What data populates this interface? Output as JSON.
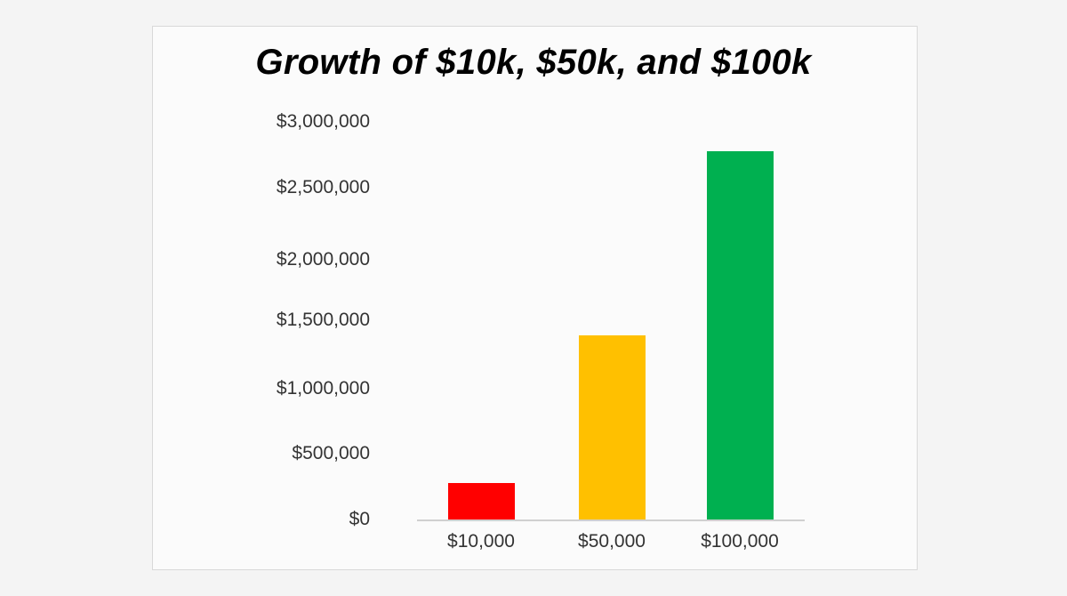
{
  "chart_data": {
    "type": "bar",
    "title": "Growth of $10k, $50k, and $100k",
    "xlabel": "",
    "ylabel": "",
    "categories": [
      "$10,000",
      "$50,000",
      "$100,000"
    ],
    "values": [
      280000,
      1390000,
      2780000
    ],
    "colors": [
      "#ff0000",
      "#ffc000",
      "#00b050"
    ],
    "ylim": [
      0,
      3000000
    ],
    "yticks": [
      "$0",
      "$500,000",
      "$1,000,000",
      "$1,500,000",
      "$2,000,000",
      "$2,500,000",
      "$3,000,000"
    ],
    "grid": false,
    "legend": "none"
  },
  "ticks": {
    "y0": "$0",
    "y1": "$500,000",
    "y2": "$1,000,000",
    "y3": "$1,500,000",
    "y4": "$2,000,000",
    "y5": "$2,500,000",
    "y6": "$3,000,000"
  }
}
